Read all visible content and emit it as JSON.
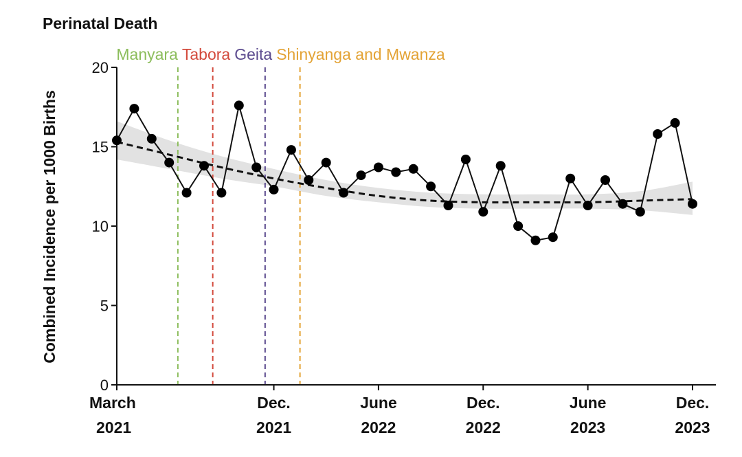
{
  "chart_data": {
    "type": "line",
    "title": "Perinatal Death",
    "xlabel": "",
    "ylabel": "Combined Incidence per 1000 Births",
    "ylim": [
      0,
      20
    ],
    "yticks": [
      "0",
      "5",
      "10",
      "15",
      "20"
    ],
    "xlim": [
      "2021-03",
      "2023-12"
    ],
    "xticks": [
      {
        "month": "2021-03",
        "line1": "March",
        "line2": "2021"
      },
      {
        "month": "2021-12",
        "line1": "Dec.",
        "line2": "2021"
      },
      {
        "month": "2022-06",
        "line1": "June",
        "line2": "2022"
      },
      {
        "month": "2022-12",
        "line1": "Dec.",
        "line2": "2022"
      },
      {
        "month": "2023-06",
        "line1": "June",
        "line2": "2023"
      },
      {
        "month": "2023-12",
        "line1": "Dec.",
        "line2": "2023"
      }
    ],
    "series": [
      {
        "name": "",
        "x": [
          "2021-03",
          "2021-04",
          "2021-05",
          "2021-06",
          "2021-07",
          "2021-08",
          "2021-09",
          "2021-10",
          "2021-11",
          "2021-12",
          "2022-01",
          "2022-02",
          "2022-03",
          "2022-04",
          "2022-05",
          "2022-06",
          "2022-07",
          "2022-08",
          "2022-09",
          "2022-10",
          "2022-11",
          "2022-12",
          "2023-01",
          "2023-02",
          "2023-03",
          "2023-04",
          "2023-05",
          "2023-06",
          "2023-07",
          "2023-08",
          "2023-09",
          "2023-10",
          "2023-11",
          "2023-12"
        ],
        "values": [
          15.4,
          17.4,
          15.5,
          14.0,
          12.1,
          13.8,
          12.1,
          17.6,
          13.7,
          12.3,
          14.8,
          12.9,
          14.0,
          12.1,
          13.2,
          13.7,
          13.4,
          13.6,
          12.5,
          11.3,
          14.2,
          10.9,
          13.8,
          10.0,
          9.1,
          9.3,
          13.0,
          11.3,
          12.9,
          11.4,
          10.9,
          15.8,
          16.5,
          11.4
        ]
      }
    ],
    "trend": {
      "style": "dashed",
      "x": [
        "2021-03",
        "2021-06",
        "2021-09",
        "2021-12",
        "2022-03",
        "2022-06",
        "2022-09",
        "2022-12",
        "2023-03",
        "2023-06",
        "2023-09",
        "2023-12"
      ],
      "values": [
        15.3,
        14.5,
        13.7,
        13.0,
        12.4,
        11.9,
        11.6,
        11.5,
        11.5,
        11.5,
        11.6,
        11.7
      ],
      "ci_lower": [
        14.2,
        13.6,
        13.0,
        12.5,
        11.9,
        11.5,
        11.2,
        11.1,
        11.1,
        11.1,
        11.0,
        10.7
      ],
      "ci_upper": [
        16.6,
        15.4,
        14.4,
        13.6,
        12.9,
        12.4,
        12.1,
        12.0,
        12.0,
        12.0,
        12.2,
        12.8
      ]
    },
    "annotations": [
      {
        "label": "Manyara",
        "month": "2021-06.5",
        "color": "#8cbd5c"
      },
      {
        "label": "Tabora",
        "month": "2021-08.5",
        "color": "#d34a3c"
      },
      {
        "label": "Geita",
        "month": "2021-11.5",
        "color": "#5b4a8e"
      },
      {
        "label": "Shinyanga and Mwanza",
        "month": "2022-01.5",
        "color": "#e3a335"
      }
    ],
    "grid": false,
    "colors": {
      "line": "#111111",
      "marker": "#000000",
      "band": "#e2e2e2",
      "trend": "#111111"
    }
  }
}
